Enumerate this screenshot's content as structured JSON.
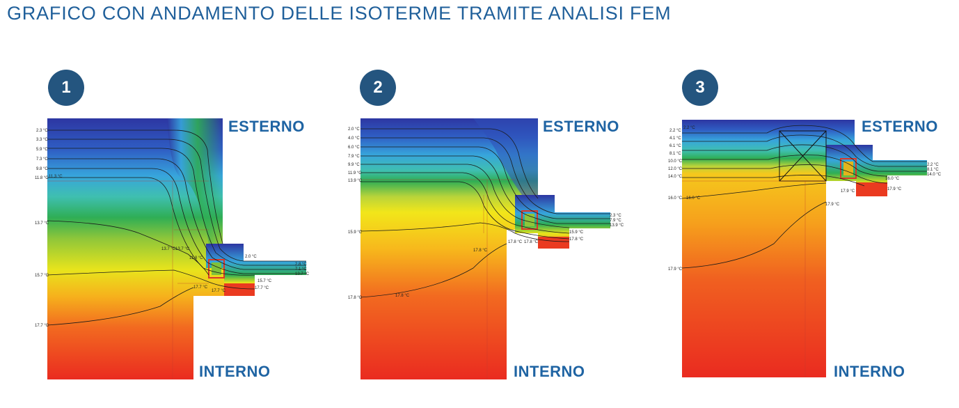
{
  "title": "GRAFICO CON ANDAMENTO DELLE ISOTERME TRAMITE ANALISI FEM",
  "colors": {
    "accent": "#1f64a3",
    "badge": "#24557f",
    "cold": "#2f3aa3",
    "warm": "#ec2a20"
  },
  "panels": [
    {
      "number": "1",
      "outside_label": "ESTERNO",
      "inside_label": "INTERNO",
      "left_temps": [
        "2.3 °C",
        "3.3 °C",
        "5.9 °C",
        "7.3 °C",
        "9.8 °C",
        "11.8 °C",
        "13.7 °C",
        "15.7 °C",
        "17.7 °C"
      ],
      "inner_temps": [
        "11.3 °C",
        "13.7 °C",
        "13.7 °C",
        "11.8 °C",
        "17.7 °C",
        "17.7 °C",
        "2.0 °C",
        "15.7 °C",
        "17.7 °C"
      ],
      "right_temps": [
        "2.8 °C",
        "7.1 °C",
        "13.7 °C"
      ]
    },
    {
      "number": "2",
      "outside_label": "ESTERNO",
      "inside_label": "INTERNO",
      "left_temps": [
        "2.0 °C",
        "4.0 °C",
        "6.0 °C",
        "7.9 °C",
        "9.9 °C",
        "11.9 °C",
        "13.9 °C",
        "15.9 °C",
        "17.8 °C"
      ],
      "inner_temps": [
        "17.8 °C",
        "17.8 °C",
        "17.8 °C",
        "17.8 °C",
        "15.9 °C",
        "17.8 °C"
      ],
      "right_temps": [
        "2.3 °C",
        "7.9 °C",
        "13.9 °C"
      ]
    },
    {
      "number": "3",
      "outside_label": "ESTERNO",
      "inside_label": "INTERNO",
      "left_temps": [
        "2.2 °C",
        "4.1 °C",
        "6.1 °C",
        "8.1 °C",
        "10.0 °C",
        "12.0 °C",
        "14.0 °C",
        "16.0 °C",
        "17.9 °C"
      ],
      "inner_temps": [
        "2.2 °C",
        "16.0 °C",
        "17.9 °C",
        "17.9 °C",
        "17.9 °C",
        "16.0 °C"
      ],
      "right_temps": [
        "2.2 °C",
        "8.1 °C",
        "14.0 °C"
      ]
    }
  ]
}
